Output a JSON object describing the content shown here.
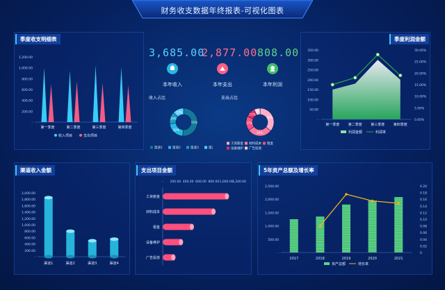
{
  "page": {
    "title": "财务收支数据年终报表-可视化图表"
  },
  "kpis": [
    {
      "value": "3,685.00",
      "label": "本年收入",
      "color": "#5ad1ff",
      "icon": "income-icon"
    },
    {
      "value": "2,877.00",
      "label": "本年支出",
      "color": "#ff6f8f",
      "icon": "expense-icon"
    },
    {
      "value": "808.00",
      "label": "本年利润",
      "color": "#5fd38a",
      "icon": "profit-icon"
    }
  ],
  "donuts": {
    "income": {
      "title": "收入占比",
      "slices": [
        {
          "label": "渠道1",
          "pct": "51%",
          "value": 51,
          "color": "#147a9a"
        },
        {
          "label": "渠道2",
          "pct": "22%",
          "value": 22,
          "color": "#28b8e0"
        },
        {
          "label": "渠道3",
          "pct": "14%",
          "value": 14,
          "color": "#1aa0c8"
        },
        {
          "label": "渠道4",
          "pct": "13%",
          "value": 13,
          "color": "#5ad1ff"
        }
      ]
    },
    "expense": {
      "title": "支出占比",
      "slices": [
        {
          "label": "工资薪金",
          "pct": "36%",
          "value": 36,
          "color": "#ffb0c8"
        },
        {
          "label": "材料成本",
          "pct": "29%",
          "value": 29,
          "color": "#ff7aa0"
        },
        {
          "label": "租金",
          "pct": "17%",
          "value": 17,
          "color": "#ff4f7e"
        },
        {
          "label": "设备维护",
          "pct": "11%",
          "value": 11,
          "color": "#e03060"
        },
        {
          "label": "广告投放",
          "pct": "7%",
          "value": 7,
          "color": "#ffd0dc"
        }
      ]
    }
  },
  "chart_data": [
    {
      "id": "quarterly",
      "type": "bar",
      "title": "季度收支明细表",
      "categories": [
        "第一季度",
        "第二季度",
        "第三季度",
        "第四季度"
      ],
      "series": [
        {
          "name": "收入项目",
          "values": [
            1000,
            950,
            1050,
            1020
          ],
          "color": "#3ad6ff"
        },
        {
          "name": "支出项目",
          "values": [
            700,
            750,
            720,
            680
          ],
          "color": "#ff5f86"
        }
      ],
      "ylim": [
        0,
        1200
      ],
      "yticks": [
        "-",
        "200.00",
        "400.00",
        "600.00",
        "800.00",
        "1,000.00",
        "1,200.00"
      ],
      "legend": "bottom"
    },
    {
      "id": "profit",
      "type": "area",
      "title": "季度利润金额",
      "categories": [
        "第一季度",
        "第二季度",
        "第三季度",
        "第四季度"
      ],
      "series": [
        {
          "name": "利润金额",
          "values": [
            150,
            180,
            300,
            200
          ],
          "color": "#8be0a8"
        },
        {
          "name": "利润率",
          "values": [
            0.15,
            0.18,
            0.28,
            0.19
          ],
          "color": "#2ca84a"
        }
      ],
      "ylim": [
        0,
        350
      ],
      "yticks": [
        "-",
        "50.00",
        "100.00",
        "150.00",
        "200.00",
        "250.00",
        "300.00",
        "350.00"
      ],
      "y2lim": [
        0,
        0.3
      ],
      "y2ticks": [
        "0.00%",
        "5.00%",
        "10.00%",
        "15.00%",
        "20.00%",
        "25.00%",
        "30.00%"
      ],
      "legend": "bottom"
    },
    {
      "id": "channel",
      "type": "bar",
      "title": "渠道收入金额",
      "categories": [
        "渠道1",
        "渠道2",
        "渠道3",
        "渠道4"
      ],
      "series": [
        {
          "name": "收入",
          "values": [
            1850,
            800,
            500,
            550
          ],
          "color": "#2ac4e8"
        }
      ],
      "ylim": [
        0,
        2000
      ],
      "yticks": [
        "-",
        "200.00",
        "400.00",
        "600.00",
        "800.00",
        "1,000.00",
        "1,200.00",
        "1,400.00",
        "1,600.00",
        "1,800.00",
        "2,000.00"
      ]
    },
    {
      "id": "expense_items",
      "type": "bar",
      "title": "支出项目金额",
      "categories": [
        "工资薪金",
        "材料成本",
        "租金",
        "设备维护",
        "广告投放"
      ],
      "series": [
        {
          "name": "支出",
          "values": [
            1040,
            830,
            490,
            320,
            200
          ],
          "color": "#ff4f7e"
        }
      ],
      "xlim": [
        0,
        1000
      ],
      "xticks": [
        "-",
        "200.00",
        "400.00",
        "600.00",
        "800.00",
        "1,000.00",
        "1,200.00"
      ],
      "orientation": "horizontal"
    },
    {
      "id": "assets",
      "type": "bar",
      "title": "5年资产总额及增长率",
      "categories": [
        "2017",
        "2018",
        "2019",
        "2020",
        "2021"
      ],
      "series": [
        {
          "name": "资产总额",
          "values": [
            1250,
            1350,
            1800,
            1950,
            2080
          ],
          "color": "#5fd38a"
        },
        {
          "name": "增长率",
          "values": [
            null,
            0.08,
            0.175,
            0.155,
            0.148
          ],
          "color": "#f2b01e"
        }
      ],
      "ylim": [
        0,
        2500
      ],
      "yticks": [
        "-",
        "500.00",
        "1,000.00",
        "1,500.00",
        "2,000.00",
        "2,500.00"
      ],
      "y2lim": [
        0,
        0.2
      ],
      "y2ticks": [
        "0",
        "0.02",
        "0.04",
        "0.06",
        "0.08",
        "0.10",
        "0.12",
        "0.14",
        "0.16",
        "0.18",
        "0.20"
      ],
      "legend": "bottom"
    }
  ]
}
